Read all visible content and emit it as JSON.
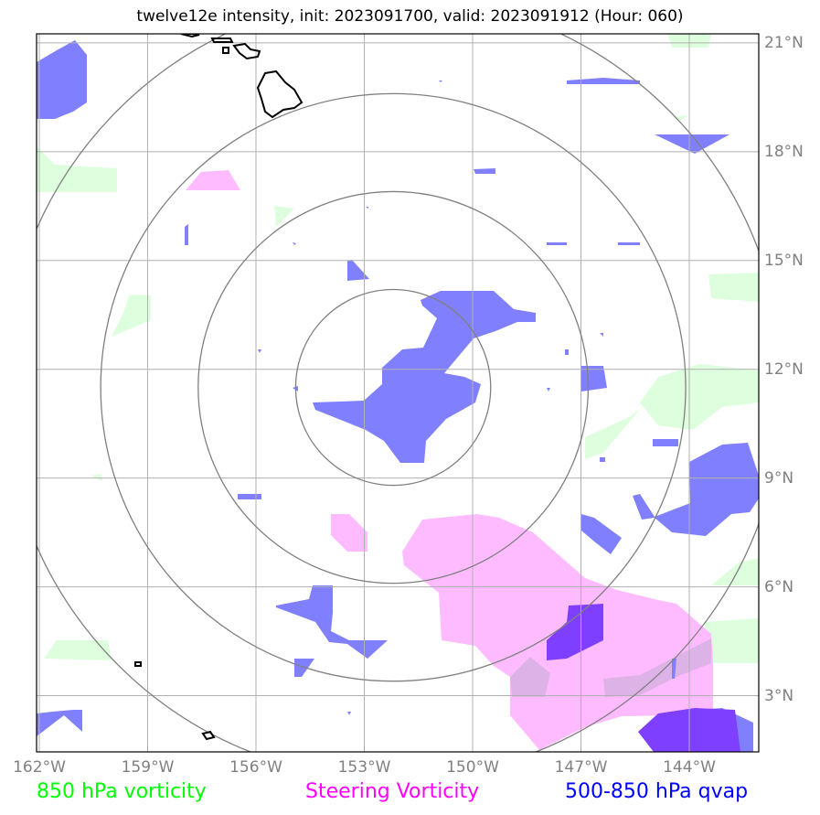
{
  "title": "twelve12e intensity, init: 2023091700, valid: 2023091912 (Hour: 060)",
  "map": {
    "lon_range": [
      -162,
      -142
    ],
    "lat_range": [
      1.5,
      21.3
    ],
    "lon_ticks": [
      {
        "value": -162,
        "label": "162°W"
      },
      {
        "value": -159,
        "label": "159°W"
      },
      {
        "value": -156,
        "label": "156°W"
      },
      {
        "value": -153,
        "label": "153°W"
      },
      {
        "value": -150,
        "label": "150°W"
      },
      {
        "value": -147,
        "label": "147°W"
      },
      {
        "value": -144,
        "label": "144°W"
      }
    ],
    "lat_ticks": [
      {
        "value": 21,
        "label": "21°N"
      },
      {
        "value": 18,
        "label": "18°N"
      },
      {
        "value": 15,
        "label": "15°N"
      },
      {
        "value": 12,
        "label": "12°N"
      },
      {
        "value": 9,
        "label": "9°N"
      },
      {
        "value": 6,
        "label": "6°N"
      },
      {
        "value": 3,
        "label": "3°N"
      }
    ],
    "storm_center": {
      "lon": -152.2,
      "lat": 11.5
    },
    "range_rings_deg": [
      2.7,
      5.4,
      8.1,
      10.8
    ],
    "grid_color": "#b0b0b0",
    "ring_color": "#808080"
  },
  "legend": {
    "vort850": {
      "label": "850 hPa vorticity",
      "color": "#00ff00"
    },
    "steering": {
      "label": "Steering Vorticity",
      "color": "#ff00ff"
    },
    "qvap": {
      "label": "500-850 hPa qvap",
      "color": "#0000ff"
    }
  },
  "layers": {
    "vort850_color": "#ddffdd",
    "steering_color": "#ffbbff",
    "qvap_color": "#8080ff",
    "qvap_strong_color": "#7f3fff"
  }
}
